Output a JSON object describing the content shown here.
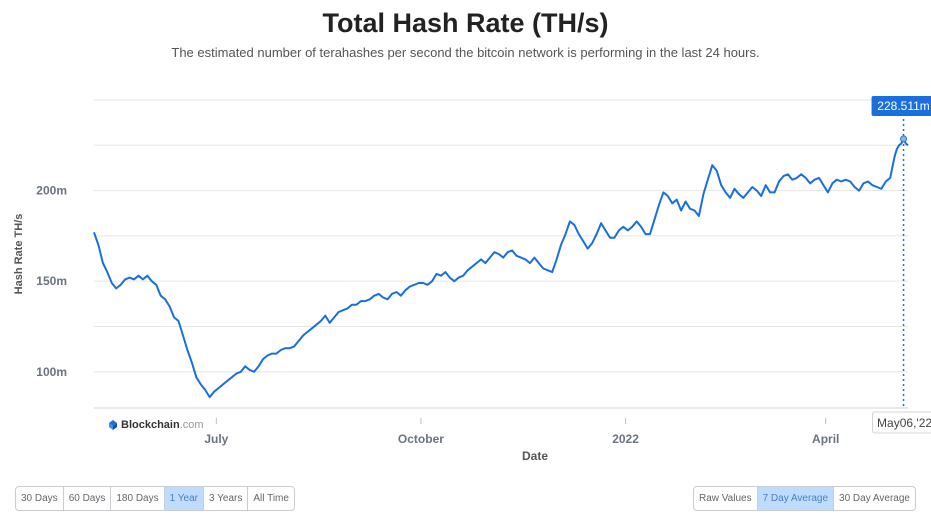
{
  "header": {
    "title": "Total Hash Rate (TH/s)",
    "subtitle": "The estimated number of terahashes per second the bitcoin network is performing in the last 24 hours."
  },
  "range_buttons": [
    {
      "label": "30 Days",
      "active": false
    },
    {
      "label": "60 Days",
      "active": false
    },
    {
      "label": "180 Days",
      "active": false
    },
    {
      "label": "1 Year",
      "active": true
    },
    {
      "label": "3 Years",
      "active": false
    },
    {
      "label": "All Time",
      "active": false
    }
  ],
  "mode_buttons": [
    {
      "label": "Raw Values",
      "active": false
    },
    {
      "label": "7 Day Average",
      "active": true
    },
    {
      "label": "30 Day Average",
      "active": false
    }
  ],
  "watermark": {
    "brand": "Blockchain",
    "suffix": ".com"
  },
  "colors": {
    "line": "#1a6fdc",
    "tooltip_bg": "#1a6fdc",
    "grid": "#e6e6e6",
    "active_button": "#bfdcff"
  },
  "chart_data": {
    "type": "line",
    "xlabel": "Date",
    "ylabel": "Hash Rate TH/s",
    "x_ticks": [
      {
        "label": "July",
        "date": "2021-07-01"
      },
      {
        "label": "October",
        "date": "2021-10-01"
      },
      {
        "label": "2022",
        "date": "2022-01-01"
      },
      {
        "label": "April",
        "date": "2022-04-01"
      }
    ],
    "y_ticks": [
      {
        "label": "100m",
        "value": 100000000
      },
      {
        "label": "150m",
        "value": 150000000
      },
      {
        "label": "200m",
        "value": 200000000
      }
    ],
    "xlim": [
      "2021-05-07",
      "2022-05-08"
    ],
    "ylim": [
      80000000,
      250000000
    ],
    "grid": true,
    "highlight": {
      "date": "2022-05-06",
      "date_label": "May06,'22",
      "value": 228511000,
      "value_label": "228.511m"
    },
    "series": [
      {
        "name": "",
        "points": [
          [
            "2021-05-07",
            177000000
          ],
          [
            "2021-05-09",
            170000000
          ],
          [
            "2021-05-11",
            160000000
          ],
          [
            "2021-05-13",
            155000000
          ],
          [
            "2021-05-15",
            149000000
          ],
          [
            "2021-05-17",
            146000000
          ],
          [
            "2021-05-19",
            148000000
          ],
          [
            "2021-05-21",
            151000000
          ],
          [
            "2021-05-23",
            152000000
          ],
          [
            "2021-05-25",
            151000000
          ],
          [
            "2021-05-27",
            153000000
          ],
          [
            "2021-05-29",
            151000000
          ],
          [
            "2021-05-31",
            153000000
          ],
          [
            "2021-06-02",
            150000000
          ],
          [
            "2021-06-04",
            148000000
          ],
          [
            "2021-06-06",
            142000000
          ],
          [
            "2021-06-08",
            140000000
          ],
          [
            "2021-06-10",
            136000000
          ],
          [
            "2021-06-12",
            130000000
          ],
          [
            "2021-06-14",
            128000000
          ],
          [
            "2021-06-16",
            120000000
          ],
          [
            "2021-06-18",
            112000000
          ],
          [
            "2021-06-20",
            105000000
          ],
          [
            "2021-06-22",
            97000000
          ],
          [
            "2021-06-24",
            93000000
          ],
          [
            "2021-06-26",
            90000000
          ],
          [
            "2021-06-28",
            86000000
          ],
          [
            "2021-06-30",
            89000000
          ],
          [
            "2021-07-02",
            91000000
          ],
          [
            "2021-07-04",
            93000000
          ],
          [
            "2021-07-06",
            95000000
          ],
          [
            "2021-07-08",
            97000000
          ],
          [
            "2021-07-10",
            99000000
          ],
          [
            "2021-07-12",
            100000000
          ],
          [
            "2021-07-14",
            103000000
          ],
          [
            "2021-07-16",
            101000000
          ],
          [
            "2021-07-18",
            100000000
          ],
          [
            "2021-07-20",
            103000000
          ],
          [
            "2021-07-22",
            107000000
          ],
          [
            "2021-07-24",
            109000000
          ],
          [
            "2021-07-26",
            110000000
          ],
          [
            "2021-07-28",
            110000000
          ],
          [
            "2021-07-30",
            112000000
          ],
          [
            "2021-08-01",
            113000000
          ],
          [
            "2021-08-03",
            113000000
          ],
          [
            "2021-08-05",
            114000000
          ],
          [
            "2021-08-07",
            117000000
          ],
          [
            "2021-08-09",
            120000000
          ],
          [
            "2021-08-11",
            122000000
          ],
          [
            "2021-08-13",
            124000000
          ],
          [
            "2021-08-15",
            126000000
          ],
          [
            "2021-08-17",
            128000000
          ],
          [
            "2021-08-19",
            131000000
          ],
          [
            "2021-08-21",
            127000000
          ],
          [
            "2021-08-23",
            130000000
          ],
          [
            "2021-08-25",
            133000000
          ],
          [
            "2021-08-27",
            134000000
          ],
          [
            "2021-08-29",
            135000000
          ],
          [
            "2021-08-31",
            137000000
          ],
          [
            "2021-09-02",
            137000000
          ],
          [
            "2021-09-04",
            139000000
          ],
          [
            "2021-09-06",
            139000000
          ],
          [
            "2021-09-08",
            140000000
          ],
          [
            "2021-09-10",
            142000000
          ],
          [
            "2021-09-12",
            143000000
          ],
          [
            "2021-09-14",
            141000000
          ],
          [
            "2021-09-16",
            140000000
          ],
          [
            "2021-09-18",
            143000000
          ],
          [
            "2021-09-20",
            144000000
          ],
          [
            "2021-09-22",
            142000000
          ],
          [
            "2021-09-24",
            145000000
          ],
          [
            "2021-09-26",
            147000000
          ],
          [
            "2021-09-28",
            148000000
          ],
          [
            "2021-09-30",
            149000000
          ],
          [
            "2021-10-02",
            149000000
          ],
          [
            "2021-10-04",
            148000000
          ],
          [
            "2021-10-06",
            150000000
          ],
          [
            "2021-10-08",
            154000000
          ],
          [
            "2021-10-10",
            153000000
          ],
          [
            "2021-10-12",
            155000000
          ],
          [
            "2021-10-14",
            152000000
          ],
          [
            "2021-10-16",
            150000000
          ],
          [
            "2021-10-18",
            152000000
          ],
          [
            "2021-10-20",
            153000000
          ],
          [
            "2021-10-22",
            156000000
          ],
          [
            "2021-10-24",
            158000000
          ],
          [
            "2021-10-26",
            160000000
          ],
          [
            "2021-10-28",
            162000000
          ],
          [
            "2021-10-30",
            160000000
          ],
          [
            "2021-11-01",
            163000000
          ],
          [
            "2021-11-03",
            166000000
          ],
          [
            "2021-11-05",
            165000000
          ],
          [
            "2021-11-07",
            163000000
          ],
          [
            "2021-11-09",
            166000000
          ],
          [
            "2021-11-11",
            167000000
          ],
          [
            "2021-11-13",
            164000000
          ],
          [
            "2021-11-15",
            163000000
          ],
          [
            "2021-11-17",
            162000000
          ],
          [
            "2021-11-19",
            160000000
          ],
          [
            "2021-11-21",
            163000000
          ],
          [
            "2021-11-23",
            160000000
          ],
          [
            "2021-11-25",
            157000000
          ],
          [
            "2021-11-27",
            156000000
          ],
          [
            "2021-11-29",
            155000000
          ],
          [
            "2021-12-01",
            162000000
          ],
          [
            "2021-12-03",
            170000000
          ],
          [
            "2021-12-05",
            176000000
          ],
          [
            "2021-12-07",
            183000000
          ],
          [
            "2021-12-09",
            181000000
          ],
          [
            "2021-12-11",
            176000000
          ],
          [
            "2021-12-13",
            172000000
          ],
          [
            "2021-12-15",
            168000000
          ],
          [
            "2021-12-17",
            171000000
          ],
          [
            "2021-12-19",
            176000000
          ],
          [
            "2021-12-21",
            182000000
          ],
          [
            "2021-12-23",
            178000000
          ],
          [
            "2021-12-25",
            174000000
          ],
          [
            "2021-12-27",
            174000000
          ],
          [
            "2021-12-29",
            178000000
          ],
          [
            "2021-12-31",
            180000000
          ],
          [
            "2022-01-02",
            178000000
          ],
          [
            "2022-01-04",
            180000000
          ],
          [
            "2022-01-06",
            183000000
          ],
          [
            "2022-01-08",
            180000000
          ],
          [
            "2022-01-10",
            176000000
          ],
          [
            "2022-01-12",
            176000000
          ],
          [
            "2022-01-14",
            184000000
          ],
          [
            "2022-01-16",
            192000000
          ],
          [
            "2022-01-18",
            199000000
          ],
          [
            "2022-01-20",
            197000000
          ],
          [
            "2022-01-22",
            193000000
          ],
          [
            "2022-01-24",
            195000000
          ],
          [
            "2022-01-26",
            189000000
          ],
          [
            "2022-01-28",
            194000000
          ],
          [
            "2022-01-30",
            190000000
          ],
          [
            "2022-02-01",
            189000000
          ],
          [
            "2022-02-03",
            186000000
          ],
          [
            "2022-02-05",
            198000000
          ],
          [
            "2022-02-07",
            206000000
          ],
          [
            "2022-02-09",
            214000000
          ],
          [
            "2022-02-11",
            211000000
          ],
          [
            "2022-02-13",
            203000000
          ],
          [
            "2022-02-15",
            199000000
          ],
          [
            "2022-02-17",
            196000000
          ],
          [
            "2022-02-19",
            201000000
          ],
          [
            "2022-02-21",
            198000000
          ],
          [
            "2022-02-23",
            196000000
          ],
          [
            "2022-02-25",
            199000000
          ],
          [
            "2022-02-27",
            202000000
          ],
          [
            "2022-03-01",
            200000000
          ],
          [
            "2022-03-03",
            197000000
          ],
          [
            "2022-03-05",
            203000000
          ],
          [
            "2022-03-07",
            199000000
          ],
          [
            "2022-03-09",
            199000000
          ],
          [
            "2022-03-11",
            205000000
          ],
          [
            "2022-03-13",
            208000000
          ],
          [
            "2022-03-15",
            209000000
          ],
          [
            "2022-03-17",
            206000000
          ],
          [
            "2022-03-19",
            207000000
          ],
          [
            "2022-03-21",
            209000000
          ],
          [
            "2022-03-23",
            207000000
          ],
          [
            "2022-03-25",
            204000000
          ],
          [
            "2022-03-27",
            206000000
          ],
          [
            "2022-03-29",
            207000000
          ],
          [
            "2022-03-31",
            203000000
          ],
          [
            "2022-04-02",
            199000000
          ],
          [
            "2022-04-04",
            204000000
          ],
          [
            "2022-04-06",
            206000000
          ],
          [
            "2022-04-08",
            205000000
          ],
          [
            "2022-04-10",
            206000000
          ],
          [
            "2022-04-12",
            205000000
          ],
          [
            "2022-04-14",
            202000000
          ],
          [
            "2022-04-16",
            200000000
          ],
          [
            "2022-04-18",
            204000000
          ],
          [
            "2022-04-20",
            205000000
          ],
          [
            "2022-04-22",
            203000000
          ],
          [
            "2022-04-24",
            202000000
          ],
          [
            "2022-04-26",
            201000000
          ],
          [
            "2022-04-28",
            205000000
          ],
          [
            "2022-04-30",
            207000000
          ],
          [
            "2022-05-01",
            213000000
          ],
          [
            "2022-05-02",
            219000000
          ],
          [
            "2022-05-03",
            223000000
          ],
          [
            "2022-05-04",
            225000000
          ],
          [
            "2022-05-05",
            226000000
          ],
          [
            "2022-05-06",
            228511000
          ],
          [
            "2022-05-07",
            226000000
          ],
          [
            "2022-05-08",
            225000000
          ]
        ]
      }
    ]
  }
}
